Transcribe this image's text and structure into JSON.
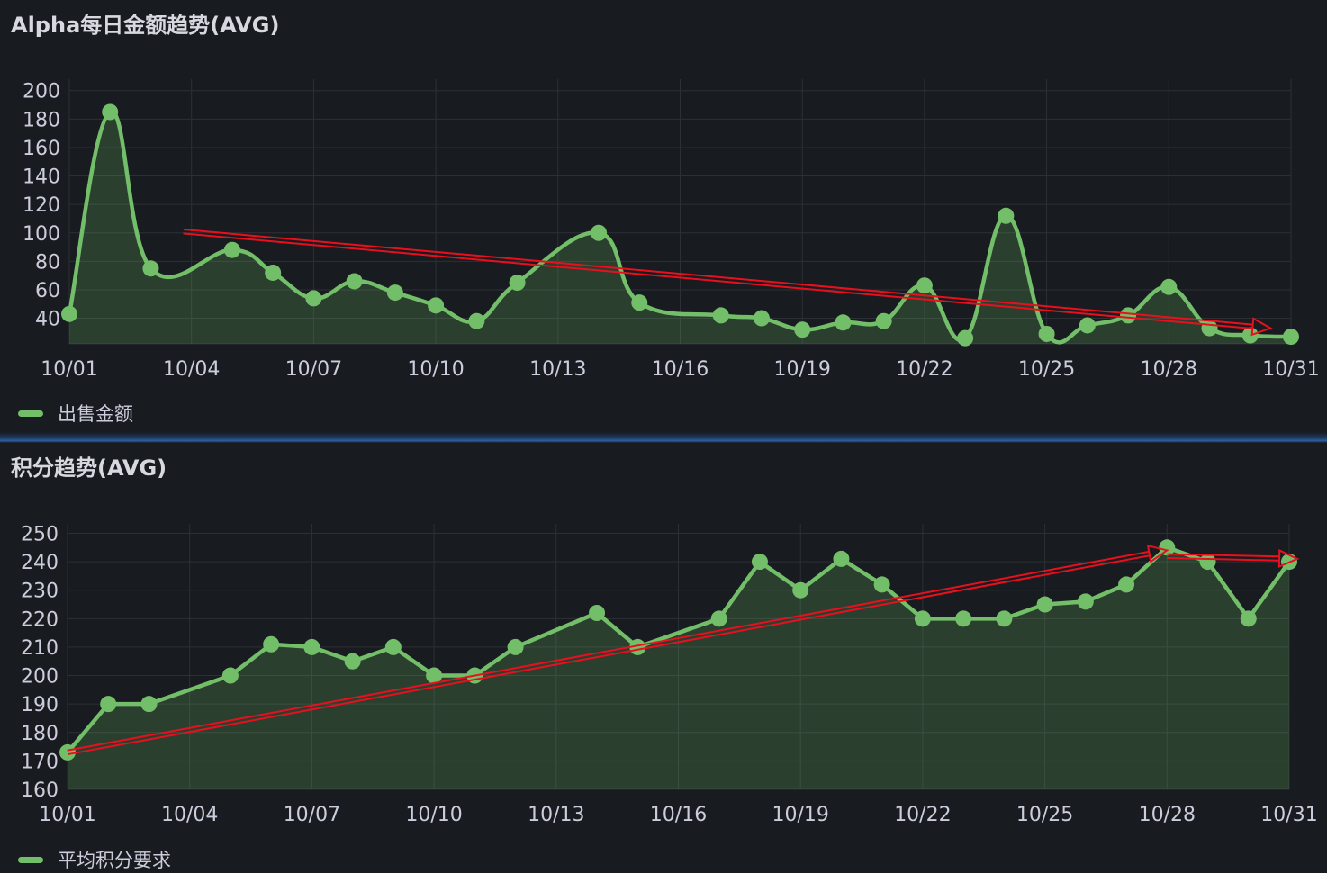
{
  "panels": {
    "top": {
      "title": "Alpha每日金额趋势(AVG)",
      "legend": "出售金额"
    },
    "bottom": {
      "title": "积分趋势(AVG)",
      "legend": "平均积分要求"
    }
  },
  "colors": {
    "series": "#73bf69",
    "annotation": "#e8101e",
    "background": "#181b1f",
    "grid": "#2c3036",
    "text": "#ccccdc"
  },
  "chart_data": [
    {
      "type": "area",
      "title": "Alpha每日金额趋势(AVG)",
      "x_tick_labels": [
        "10/01",
        "10/04",
        "10/07",
        "10/10",
        "10/13",
        "10/16",
        "10/19",
        "10/22",
        "10/25",
        "10/28",
        "10/31"
      ],
      "y_ticks": [
        40,
        60,
        80,
        100,
        120,
        140,
        160,
        180,
        200
      ],
      "ylim": [
        22,
        203
      ],
      "x": [
        1,
        2,
        3,
        5,
        6,
        7,
        8,
        9,
        10,
        11,
        12,
        14,
        15,
        17,
        18,
        19,
        20,
        21,
        22,
        23,
        24,
        25,
        26,
        27,
        28,
        29,
        30,
        31
      ],
      "series": [
        {
          "name": "出售金额",
          "values": [
            43,
            185,
            75,
            88,
            72,
            54,
            66,
            58,
            49,
            38,
            65,
            100,
            51,
            42,
            40,
            32,
            37,
            38,
            63,
            26,
            112,
            29,
            35,
            42,
            62,
            33,
            28,
            27
          ]
        }
      ],
      "annotation_arrow": {
        "from": {
          "x": 3.8,
          "y": 101
        },
        "to": {
          "x": 30.5,
          "y": 33
        }
      },
      "legend_position": "bottom-left",
      "grid": true
    },
    {
      "type": "area",
      "title": "积分趋势(AVG)",
      "x_tick_labels": [
        "10/01",
        "10/04",
        "10/07",
        "10/10",
        "10/13",
        "10/16",
        "10/19",
        "10/22",
        "10/25",
        "10/28",
        "10/31"
      ],
      "y_ticks": [
        160,
        170,
        180,
        190,
        200,
        210,
        220,
        230,
        240,
        250
      ],
      "ylim": [
        160,
        253
      ],
      "x": [
        1,
        2,
        3,
        5,
        6,
        7,
        8,
        9,
        10,
        11,
        12,
        14,
        15,
        17,
        18,
        19,
        20,
        21,
        22,
        23,
        24,
        25,
        26,
        27,
        28,
        29,
        30,
        31
      ],
      "series": [
        {
          "name": "平均积分要求",
          "values": [
            173,
            190,
            190,
            200,
            211,
            210,
            205,
            210,
            200,
            200,
            210,
            222,
            210,
            220,
            240,
            230,
            241,
            232,
            220,
            220,
            220,
            225,
            226,
            232,
            245,
            240,
            220,
            240
          ]
        }
      ],
      "annotation_arrows": [
        {
          "from": {
            "x": 1,
            "y": 173
          },
          "to": {
            "x": 28,
            "y": 244
          }
        },
        {
          "from": {
            "x": 28,
            "y": 242
          },
          "to": {
            "x": 31.2,
            "y": 241
          }
        }
      ],
      "legend_position": "bottom-left",
      "grid": true
    }
  ]
}
